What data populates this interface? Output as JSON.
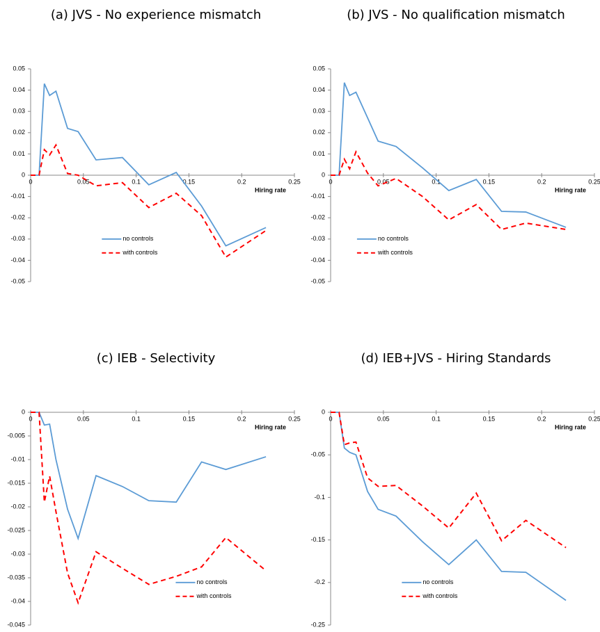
{
  "chart_data": [
    {
      "type": "line",
      "title": "(a)  JVS - No experience mismatch",
      "x_label": "Hiring rate",
      "x": [
        0,
        0.008,
        0.013,
        0.018,
        0.024,
        0.035,
        0.045,
        0.062,
        0.087,
        0.112,
        0.138,
        0.162,
        0.185,
        0.223
      ],
      "series": [
        {
          "name": "no controls",
          "color": "#5b9bd5",
          "linestyle": "solid",
          "values": [
            0,
            0,
            0.043,
            0.0375,
            0.0395,
            0.022,
            0.0205,
            0.0072,
            0.0083,
            -0.0045,
            0.0013,
            -0.0145,
            -0.0332,
            -0.0246
          ]
        },
        {
          "name": "with controls",
          "color": "#ff0000",
          "linestyle": "dashed",
          "values": [
            0,
            0,
            0.012,
            0.0095,
            0.0142,
            0.0008,
            0,
            -0.005,
            -0.0035,
            -0.0152,
            -0.0085,
            -0.019,
            -0.0385,
            -0.026
          ]
        }
      ],
      "xlim": [
        0,
        0.25
      ],
      "xticks": [
        0,
        0.05,
        0.1,
        0.15,
        0.2,
        0.25
      ],
      "ylim": [
        -0.05,
        0.05
      ],
      "yticks": [
        -0.05,
        -0.04,
        -0.03,
        -0.02,
        -0.01,
        0,
        0.01,
        0.02,
        0.03,
        0.04,
        0.05
      ],
      "grid": false,
      "legend": "lower center"
    },
    {
      "type": "line",
      "title": "(b)  JVS - No qualification mismatch",
      "x_label": "Hiring rate",
      "x": [
        0,
        0.008,
        0.013,
        0.018,
        0.024,
        0.035,
        0.045,
        0.062,
        0.087,
        0.112,
        0.138,
        0.162,
        0.185,
        0.223
      ],
      "series": [
        {
          "name": "no controls",
          "color": "#5b9bd5",
          "linestyle": "solid",
          "values": [
            0,
            0,
            0.0435,
            0.0375,
            0.039,
            0.027,
            0.016,
            0.0135,
            0.0035,
            -0.0072,
            -0.002,
            -0.017,
            -0.0173,
            -0.0245
          ]
        },
        {
          "name": "with controls",
          "color": "#ff0000",
          "linestyle": "dashed",
          "values": [
            0,
            0,
            0.0075,
            0.003,
            0.011,
            0.001,
            -0.005,
            -0.0015,
            -0.01,
            -0.021,
            -0.0138,
            -0.0255,
            -0.0225,
            -0.0255
          ]
        }
      ],
      "xlim": [
        0,
        0.25
      ],
      "xticks": [
        0,
        0.05,
        0.1,
        0.15,
        0.2,
        0.25
      ],
      "ylim": [
        -0.05,
        0.05
      ],
      "yticks": [
        -0.05,
        -0.04,
        -0.03,
        -0.02,
        -0.01,
        0,
        0.01,
        0.02,
        0.03,
        0.04,
        0.05
      ],
      "grid": false,
      "legend": "lower left"
    },
    {
      "type": "line",
      "title": "(c)  IEB - Selectivity",
      "x_label": "Hiring rate",
      "x": [
        0,
        0.008,
        0.013,
        0.018,
        0.024,
        0.035,
        0.045,
        0.062,
        0.087,
        0.112,
        0.138,
        0.162,
        0.185,
        0.223
      ],
      "series": [
        {
          "name": "no controls",
          "color": "#5b9bd5",
          "linestyle": "solid",
          "values": [
            0,
            0,
            -0.0027,
            -0.0025,
            -0.01,
            -0.0205,
            -0.0267,
            -0.0134,
            -0.0157,
            -0.0187,
            -0.019,
            -0.0105,
            -0.0121,
            -0.0094
          ]
        },
        {
          "name": "with controls",
          "color": "#ff0000",
          "linestyle": "dashed",
          "values": [
            0,
            0,
            -0.019,
            -0.0135,
            -0.021,
            -0.034,
            -0.0403,
            -0.0295,
            -0.033,
            -0.0364,
            -0.0347,
            -0.0327,
            -0.0265,
            -0.0335
          ]
        }
      ],
      "xlim": [
        0,
        0.25
      ],
      "xticks": [
        0,
        0.05,
        0.1,
        0.15,
        0.2,
        0.25
      ],
      "ylim": [
        -0.045,
        0
      ],
      "yticks": [
        -0.045,
        -0.04,
        -0.035,
        -0.03,
        -0.025,
        -0.02,
        -0.015,
        -0.01,
        -0.005,
        0
      ],
      "grid": false,
      "legend": "lower right"
    },
    {
      "type": "line",
      "title": "(d)  IEB+JVS - Hiring Standards",
      "x_label": "Hiring rate",
      "x": [
        0,
        0.008,
        0.013,
        0.018,
        0.024,
        0.035,
        0.045,
        0.062,
        0.087,
        0.112,
        0.138,
        0.162,
        0.185,
        0.223
      ],
      "series": [
        {
          "name": "no controls",
          "color": "#5b9bd5",
          "linestyle": "solid",
          "values": [
            0,
            0,
            -0.042,
            -0.047,
            -0.05,
            -0.093,
            -0.114,
            -0.122,
            -0.152,
            -0.179,
            -0.15,
            -0.187,
            -0.188,
            -0.221
          ]
        },
        {
          "name": "with controls",
          "color": "#ff0000",
          "linestyle": "dashed",
          "values": [
            0,
            0,
            -0.038,
            -0.036,
            -0.035,
            -0.077,
            -0.087,
            -0.086,
            -0.11,
            -0.136,
            -0.095,
            -0.151,
            -0.127,
            -0.159
          ]
        }
      ],
      "xlim": [
        0,
        0.25
      ],
      "xticks": [
        0,
        0.05,
        0.1,
        0.15,
        0.2,
        0.25
      ],
      "ylim": [
        -0.25,
        0
      ],
      "yticks": [
        -0.25,
        -0.2,
        -0.15,
        -0.1,
        -0.05,
        0
      ],
      "grid": false,
      "legend": "lower center"
    }
  ]
}
